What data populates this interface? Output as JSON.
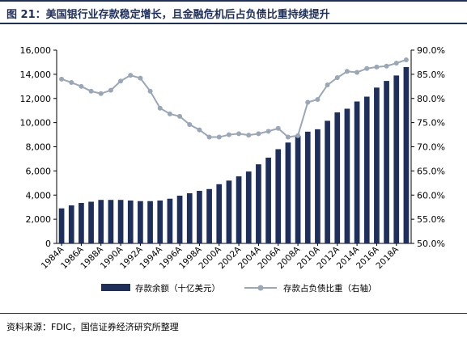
{
  "title": "图 21：美国银行业存款稳定增长，且金融危机后占负债比重持续提升",
  "source": "资料来源：FDIC，国信证券经济研究所整理",
  "colors": {
    "bar": "#1f2f5c",
    "line": "#9aa7b6",
    "title": "#1f2f5c"
  },
  "chart_data": {
    "type": "bar+line",
    "categories": [
      "1984A",
      "1985A",
      "1986A",
      "1987A",
      "1988A",
      "1989A",
      "1990A",
      "1991A",
      "1992A",
      "1993A",
      "1994A",
      "1995A",
      "1996A",
      "1997A",
      "1998A",
      "1999A",
      "2000A",
      "2001A",
      "2002A",
      "2003A",
      "2004A",
      "2005A",
      "2006A",
      "2007A",
      "2008A",
      "2009A",
      "2010A",
      "2011A",
      "2012A",
      "2013A",
      "2014A",
      "2015A",
      "2016A",
      "2017A",
      "2018A",
      "2019A"
    ],
    "x_tick_labels": [
      "1984A",
      "1986A",
      "1988A",
      "1990A",
      "1992A",
      "1994A",
      "1996A",
      "1998A",
      "2000A",
      "2002A",
      "2004A",
      "2006A",
      "2008A",
      "2010A",
      "2012A",
      "2014A",
      "2016A",
      "2018A"
    ],
    "series": [
      {
        "name": "存款余额（十亿美元）",
        "type": "bar",
        "axis": "left",
        "values": [
          2900,
          3150,
          3350,
          3450,
          3600,
          3600,
          3600,
          3550,
          3500,
          3500,
          3550,
          3700,
          3950,
          4150,
          4350,
          4500,
          4900,
          5200,
          5550,
          5950,
          6550,
          7100,
          7800,
          8350,
          8900,
          9250,
          9450,
          10150,
          10850,
          11150,
          11750,
          12150,
          12900,
          13450,
          13900,
          14600
        ]
      },
      {
        "name": "存款占负债比重（右轴）",
        "type": "line",
        "axis": "right",
        "values": [
          84.0,
          83.3,
          82.5,
          81.5,
          81.0,
          81.7,
          83.6,
          84.8,
          84.2,
          81.5,
          78.0,
          76.8,
          76.3,
          74.6,
          73.5,
          72.0,
          72.0,
          72.5,
          72.7,
          72.4,
          72.7,
          73.2,
          73.8,
          72.0,
          72.3,
          79.2,
          79.8,
          82.8,
          84.3,
          85.6,
          85.4,
          86.2,
          86.5,
          86.7,
          87.3,
          88.0
        ]
      }
    ],
    "y_left": {
      "ylim": [
        0,
        16000
      ],
      "ticks": [
        "0",
        "2,000",
        "4,000",
        "6,000",
        "8,000",
        "10,000",
        "12,000",
        "14,000",
        "16,000"
      ]
    },
    "y_right": {
      "ylim": [
        50,
        90
      ],
      "ticks": [
        "50.0%",
        "55.0%",
        "60.0%",
        "65.0%",
        "70.0%",
        "75.0%",
        "80.0%",
        "85.0%",
        "90.0%"
      ]
    },
    "legend_placement": "bottom",
    "grid": false
  }
}
